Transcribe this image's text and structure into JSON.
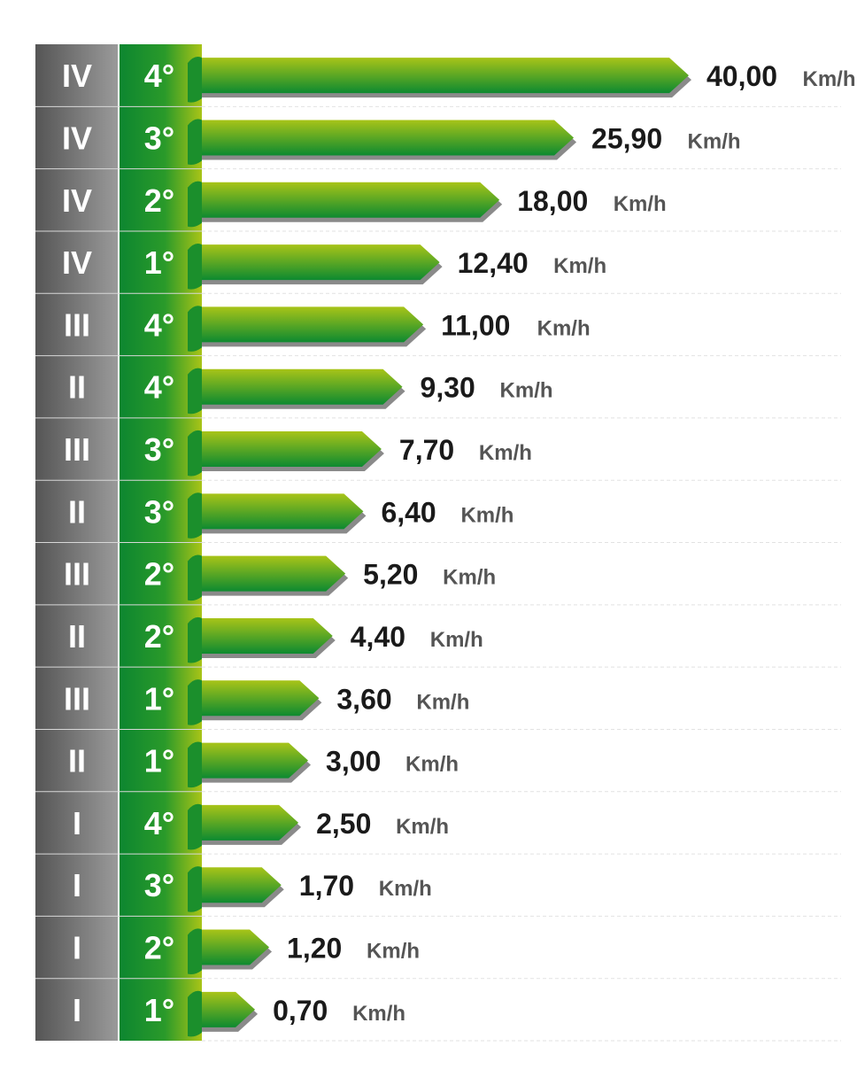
{
  "chart_data": {
    "type": "bar",
    "orientation": "horizontal",
    "unit": "Km/h",
    "rows": [
      {
        "range": "IV",
        "gear": "4°",
        "value": "40,00"
      },
      {
        "range": "IV",
        "gear": "3°",
        "value": "25,90"
      },
      {
        "range": "IV",
        "gear": "2°",
        "value": "18,00"
      },
      {
        "range": "IV",
        "gear": "1°",
        "value": "12,40"
      },
      {
        "range": "III",
        "gear": "4°",
        "value": "11,00"
      },
      {
        "range": "II",
        "gear": "4°",
        "value": "9,30"
      },
      {
        "range": "III",
        "gear": "3°",
        "value": "7,70"
      },
      {
        "range": "II",
        "gear": "3°",
        "value": "6,40"
      },
      {
        "range": "III",
        "gear": "2°",
        "value": "5,20"
      },
      {
        "range": "II",
        "gear": "2°",
        "value": "4,40"
      },
      {
        "range": "III",
        "gear": "1°",
        "value": "3,60"
      },
      {
        "range": "II",
        "gear": "1°",
        "value": "3,00"
      },
      {
        "range": "I",
        "gear": "4°",
        "value": "2,50"
      },
      {
        "range": "I",
        "gear": "3°",
        "value": "1,70"
      },
      {
        "range": "I",
        "gear": "2°",
        "value": "1,20"
      },
      {
        "range": "I",
        "gear": "1°",
        "value": "0,70"
      }
    ],
    "values": [
      40.0,
      25.9,
      18.0,
      12.4,
      11.0,
      9.3,
      7.7,
      6.4,
      5.2,
      4.4,
      3.6,
      3.0,
      2.5,
      1.7,
      1.2,
      0.7
    ],
    "colors": {
      "range_col": "#6b6b6b",
      "gear_col": "#138a2e",
      "bar_top": "#a6c219",
      "bar_bottom": "#0f8a2f",
      "value_text": "#1a1a1a",
      "unit_text": "#555555"
    }
  }
}
